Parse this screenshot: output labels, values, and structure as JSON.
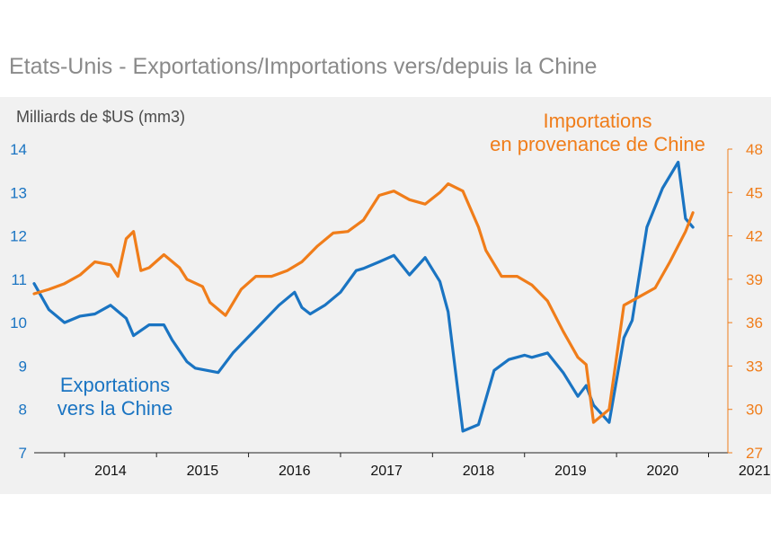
{
  "title": "Etats-Unis - Exportations/Importations vers/depuis la Chine",
  "chart_data": {
    "type": "line",
    "ylabel_left": "Milliards de $US (mm3)",
    "colors": {
      "left": "#1a74c2",
      "right": "#f07d1a"
    },
    "y_left": {
      "min": 7,
      "max": 14,
      "ticks": [
        "7",
        "8",
        "9",
        "10",
        "11",
        "12",
        "13",
        "14"
      ]
    },
    "y_right": {
      "min": 27,
      "max": 48,
      "ticks": [
        "27",
        "30",
        "33",
        "36",
        "39",
        "42",
        "45",
        "48"
      ]
    },
    "x_ticks": [
      "2014",
      "2015",
      "2016",
      "2017",
      "2018",
      "2019",
      "2020",
      "2021"
    ],
    "series": [
      {
        "name": "Exportations vers la Chine",
        "axis": "left",
        "label_lines": [
          "Exportations",
          "vers la Chine"
        ],
        "x": [
          2013.67,
          2013.83,
          2014.0,
          2014.17,
          2014.33,
          2014.5,
          2014.67,
          2014.75,
          2014.92,
          2015.08,
          2015.17,
          2015.33,
          2015.42,
          2015.67,
          2015.83,
          2015.92,
          2016.08,
          2016.33,
          2016.5,
          2016.58,
          2016.67,
          2016.83,
          2017.0,
          2017.17,
          2017.25,
          2017.42,
          2017.58,
          2017.75,
          2017.92,
          2018.08,
          2018.17,
          2018.33,
          2018.5,
          2018.67,
          2018.83,
          2019.0,
          2019.08,
          2019.25,
          2019.42,
          2019.58,
          2019.67,
          2019.75,
          2019.92,
          2020.08,
          2020.17,
          2020.33,
          2020.5,
          2020.67,
          2020.75,
          2020.83
        ],
        "values": [
          10.9,
          10.3,
          10.0,
          10.15,
          10.2,
          10.4,
          10.1,
          9.7,
          9.95,
          9.95,
          9.6,
          9.1,
          8.95,
          8.85,
          9.3,
          9.5,
          9.85,
          10.4,
          10.7,
          10.35,
          10.2,
          10.4,
          10.7,
          11.2,
          11.25,
          11.4,
          11.55,
          11.1,
          11.5,
          10.95,
          10.25,
          7.5,
          7.65,
          8.9,
          9.15,
          9.25,
          9.2,
          9.3,
          8.85,
          8.3,
          8.55,
          8.1,
          7.7,
          9.65,
          10.05,
          12.2,
          13.1,
          13.7,
          12.4,
          12.2
        ]
      },
      {
        "name": "Importations en provenance de Chine",
        "axis": "right",
        "label_lines": [
          "Importations",
          "en provenance de Chine"
        ],
        "x": [
          2013.67,
          2013.83,
          2014.0,
          2014.17,
          2014.33,
          2014.5,
          2014.58,
          2014.67,
          2014.75,
          2014.83,
          2014.92,
          2015.08,
          2015.25,
          2015.33,
          2015.5,
          2015.58,
          2015.75,
          2015.92,
          2016.08,
          2016.25,
          2016.42,
          2016.58,
          2016.75,
          2016.92,
          2017.08,
          2017.25,
          2017.42,
          2017.58,
          2017.75,
          2017.92,
          2018.08,
          2018.17,
          2018.33,
          2018.5,
          2018.58,
          2018.75,
          2018.92,
          2019.08,
          2019.25,
          2019.42,
          2019.5,
          2019.58,
          2019.67,
          2019.75,
          2019.92,
          2020.08,
          2020.25,
          2020.42,
          2020.58,
          2020.75,
          2020.83
        ],
        "values": [
          38.0,
          38.3,
          38.7,
          39.3,
          40.2,
          40.0,
          39.2,
          41.8,
          42.3,
          39.6,
          39.8,
          40.7,
          39.8,
          39.0,
          38.5,
          37.4,
          36.5,
          38.3,
          39.2,
          39.2,
          39.6,
          40.2,
          41.3,
          42.2,
          42.3,
          43.1,
          44.8,
          45.1,
          44.5,
          44.2,
          45.0,
          45.6,
          45.1,
          42.6,
          41.0,
          39.2,
          39.2,
          38.6,
          37.5,
          35.4,
          34.5,
          33.6,
          33.1,
          29.1,
          30.0,
          37.2,
          37.8,
          38.4,
          40.2,
          42.3,
          43.6
        ]
      }
    ]
  }
}
